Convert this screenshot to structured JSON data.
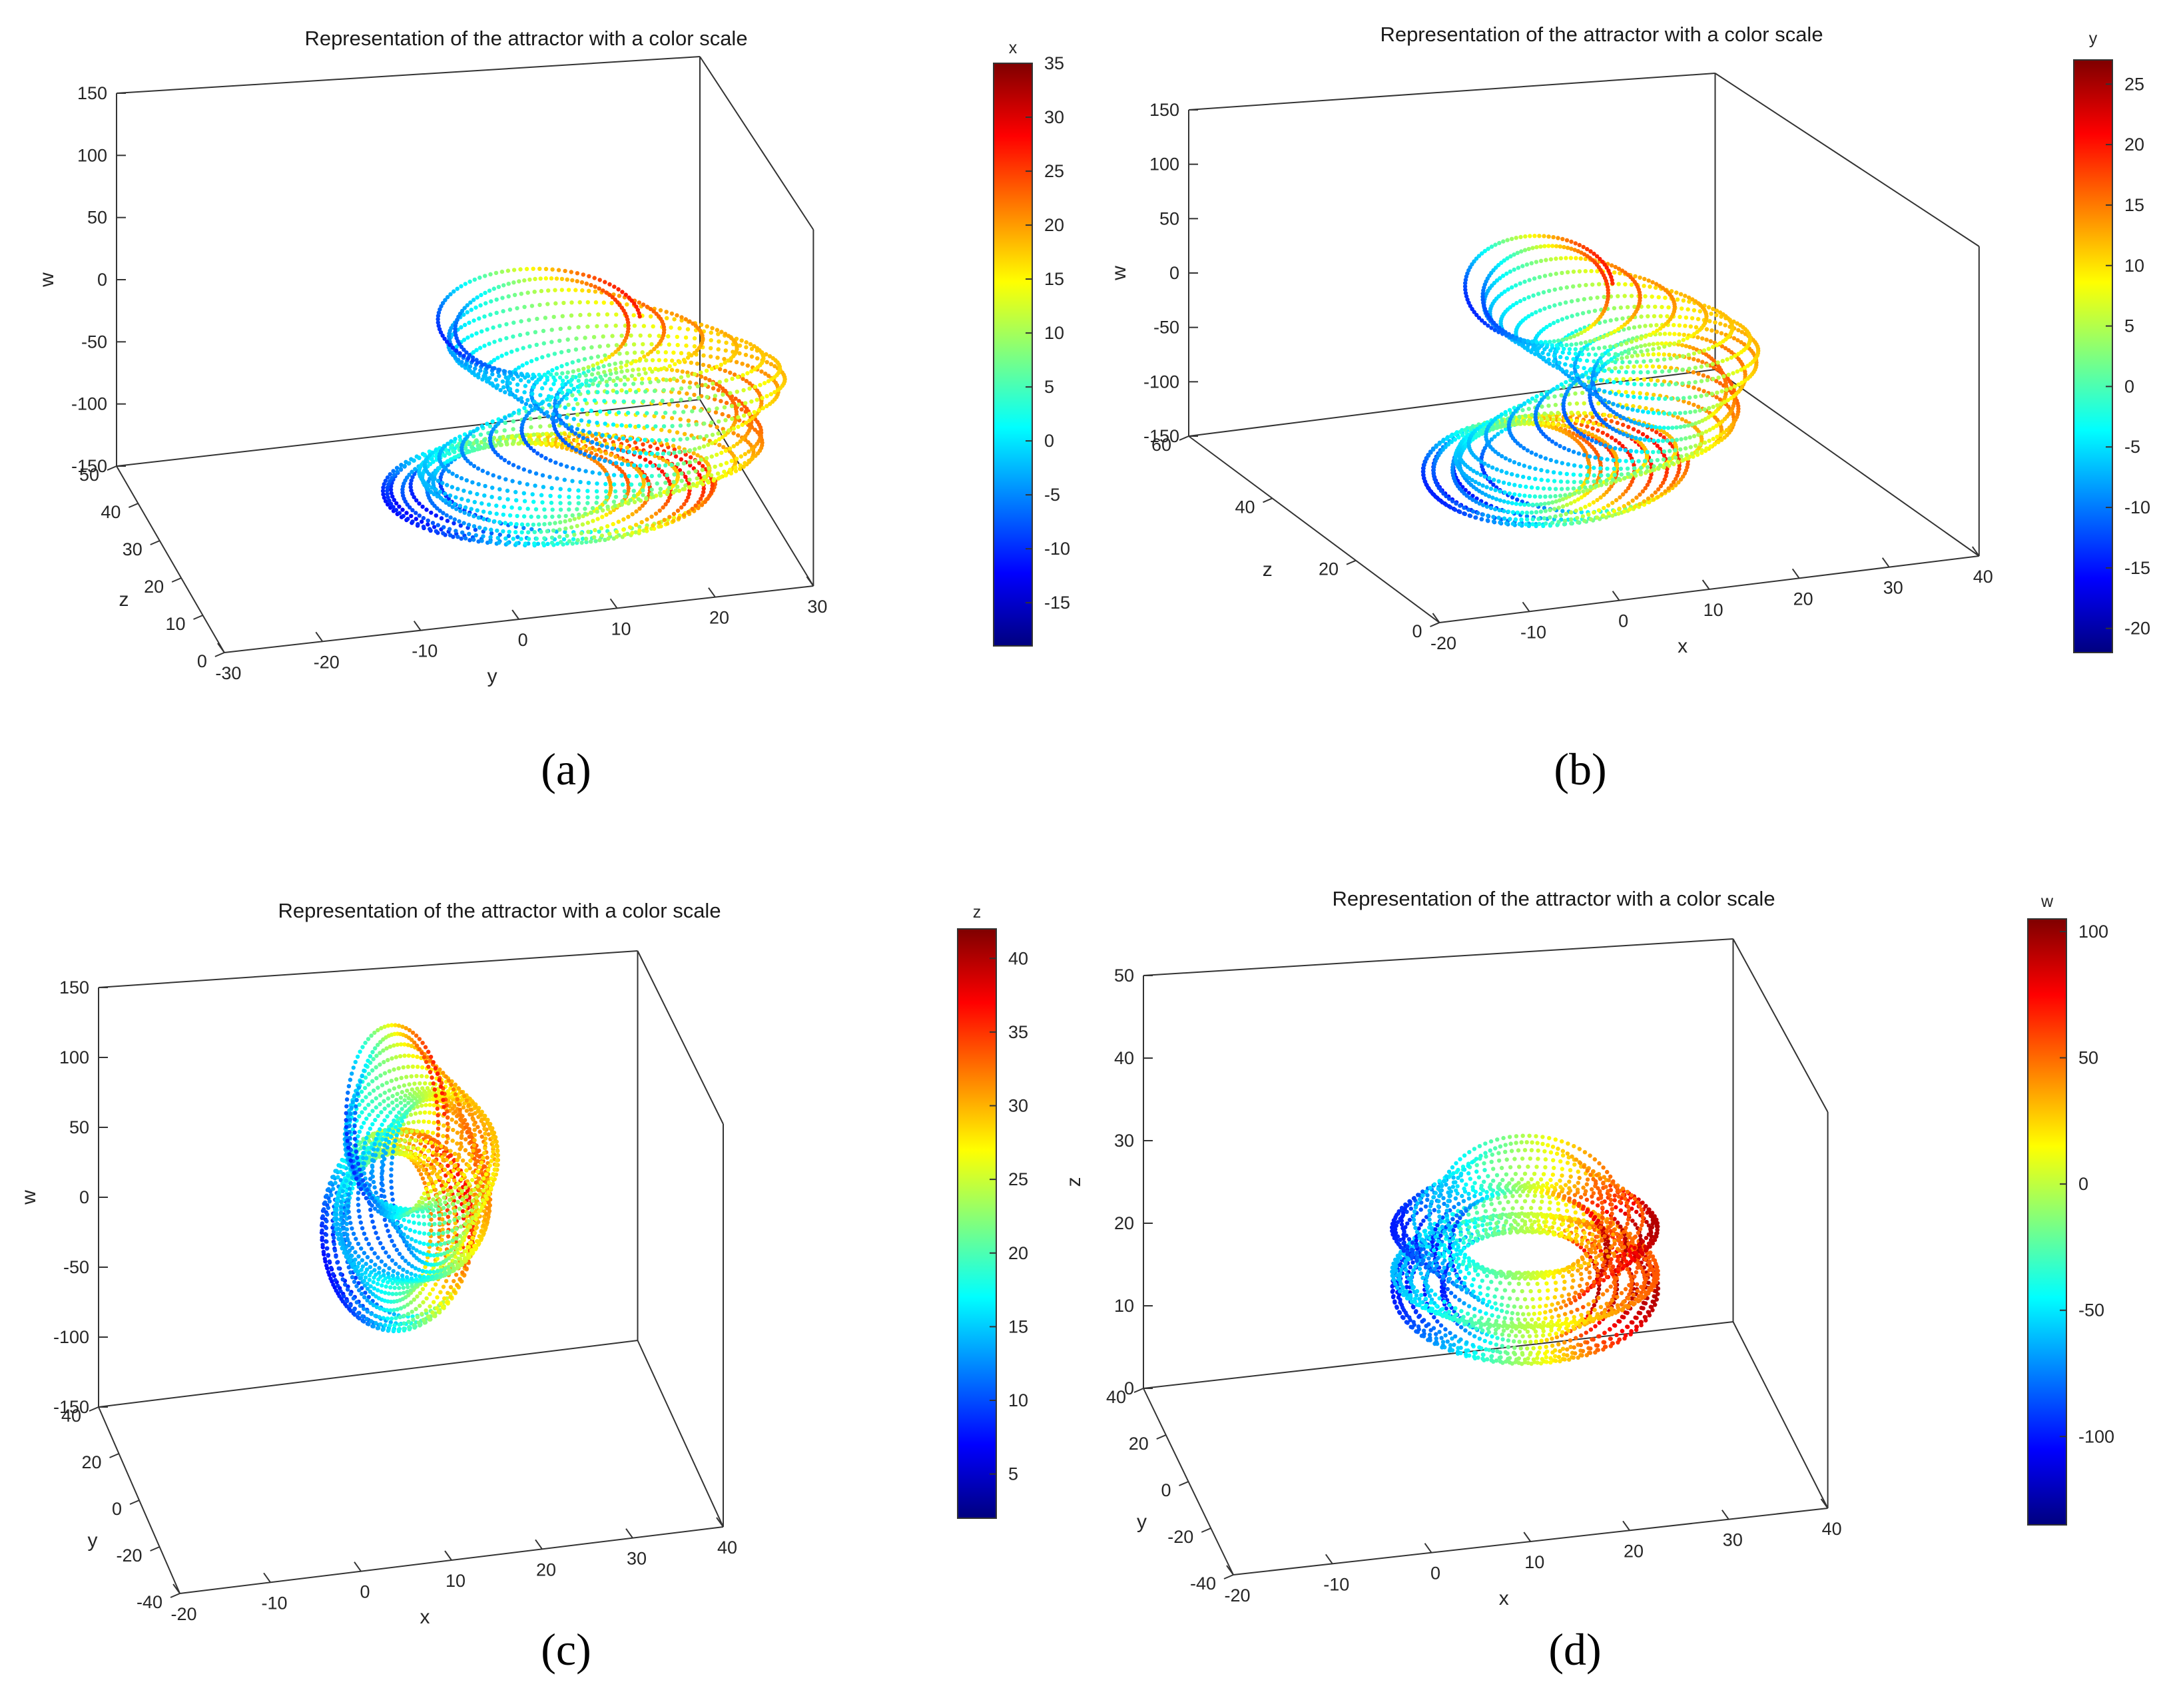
{
  "colors": {
    "frame": "#333333",
    "tick_text": "#262626",
    "background": "#ffffff"
  },
  "colormap": [
    "#00007f",
    "#0000ff",
    "#007fff",
    "#00ffff",
    "#7fff7f",
    "#ffff00",
    "#ff7f00",
    "#ff0000",
    "#7f0000"
  ],
  "chart_data": [
    {
      "type": "scatter3d",
      "title": "Representation of the attractor with a color scale",
      "caption": "(a)",
      "xlabel": "y",
      "ylabel": "z",
      "zlabel": "w",
      "colorbar_label": "x",
      "xlim": [
        -30,
        30
      ],
      "ylim": [
        0,
        50
      ],
      "zlim": [
        -150,
        150
      ],
      "clim": [
        -19,
        35
      ],
      "xticks": [
        "-30",
        "-20",
        "-10",
        "0",
        "10",
        "20",
        "30"
      ],
      "yticks": [
        "0",
        "10",
        "20",
        "30",
        "40",
        "50"
      ],
      "zticks": [
        "-150",
        "-100",
        "-50",
        "0",
        "50",
        "100",
        "150"
      ],
      "cticks": [
        "-15",
        "-10",
        "-5",
        "0",
        "5",
        "10",
        "15",
        "20",
        "25",
        "30",
        "35"
      ],
      "cticks_val": [
        -15,
        -10,
        -5,
        0,
        5,
        10,
        15,
        20,
        25,
        30,
        35
      ]
    },
    {
      "type": "scatter3d",
      "title": "Representation of the attractor with a color scale",
      "caption": "(b)",
      "xlabel": "x",
      "ylabel": "z",
      "zlabel": "w",
      "colorbar_label": "y",
      "xlim": [
        -20,
        40
      ],
      "ylim": [
        0,
        60
      ],
      "zlim": [
        -150,
        150
      ],
      "clim": [
        -22,
        27
      ],
      "xticks": [
        "-20",
        "-10",
        "0",
        "10",
        "20",
        "30",
        "40"
      ],
      "yticks": [
        "0",
        "20",
        "40",
        "60"
      ],
      "zticks": [
        "-150",
        "-100",
        "-50",
        "0",
        "50",
        "100",
        "150"
      ],
      "cticks": [
        "-20",
        "-15",
        "-10",
        "-5",
        "0",
        "5",
        "10",
        "15",
        "20",
        "25"
      ],
      "cticks_val": [
        -20,
        -15,
        -10,
        -5,
        0,
        5,
        10,
        15,
        20,
        25
      ]
    },
    {
      "type": "scatter3d",
      "title": "Representation of the attractor with a color scale",
      "caption": "(c)",
      "xlabel": "x",
      "ylabel": "y",
      "zlabel": "w",
      "colorbar_label": "z",
      "xlim": [
        -20,
        40
      ],
      "ylim": [
        -40,
        40
      ],
      "zlim": [
        -150,
        150
      ],
      "clim": [
        2,
        42
      ],
      "xticks": [
        "-20",
        "-10",
        "0",
        "10",
        "20",
        "30",
        "40"
      ],
      "yticks": [
        "-40",
        "-20",
        "0",
        "20",
        "40"
      ],
      "zticks": [
        "-150",
        "-100",
        "-50",
        "0",
        "50",
        "100",
        "150"
      ],
      "cticks": [
        "5",
        "10",
        "15",
        "20",
        "25",
        "30",
        "35",
        "40"
      ],
      "cticks_val": [
        5,
        10,
        15,
        20,
        25,
        30,
        35,
        40
      ]
    },
    {
      "type": "scatter3d",
      "title": "Representation of the attractor with a color scale",
      "caption": "(d)",
      "xlabel": "x",
      "ylabel": "y",
      "zlabel": "z",
      "colorbar_label": "w",
      "xlim": [
        -20,
        40
      ],
      "ylim": [
        -40,
        40
      ],
      "zlim": [
        0,
        50
      ],
      "clim": [
        -135,
        105
      ],
      "xticks": [
        "-20",
        "-10",
        "0",
        "10",
        "20",
        "30",
        "40"
      ],
      "yticks": [
        "-40",
        "-20",
        "0",
        "20",
        "40"
      ],
      "zticks": [
        "0",
        "10",
        "20",
        "30",
        "40",
        "50"
      ],
      "cticks": [
        "-100",
        "-50",
        "0",
        "50",
        "100"
      ],
      "cticks_val": [
        -100,
        -50,
        0,
        50,
        100
      ]
    }
  ]
}
